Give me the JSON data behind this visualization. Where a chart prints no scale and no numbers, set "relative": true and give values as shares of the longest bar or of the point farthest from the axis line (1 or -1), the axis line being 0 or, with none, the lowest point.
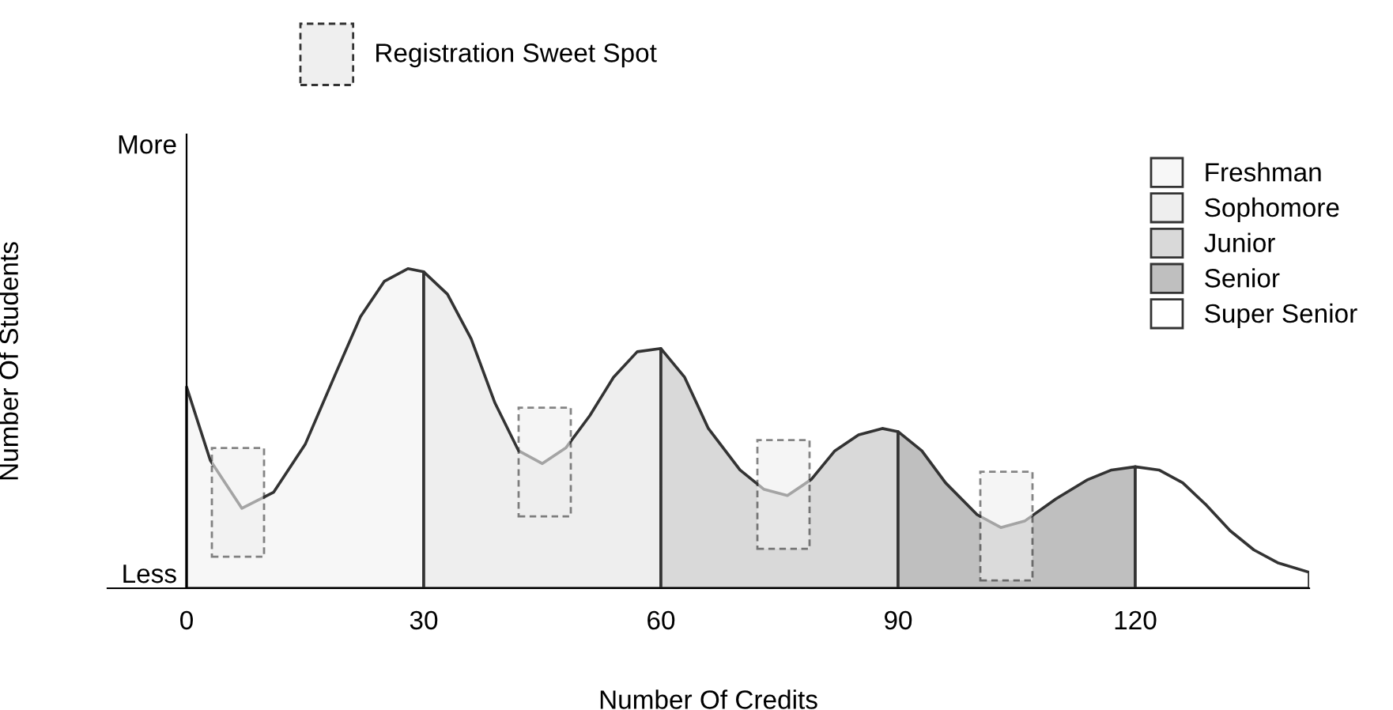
{
  "chart_data": {
    "type": "area",
    "relative": true,
    "xlabel": "Number Of Credits",
    "ylabel": "Number Of Students",
    "xlim": [
      -10,
      142
    ],
    "xticks": [
      0,
      30,
      60,
      90,
      120
    ],
    "legend": "top right",
    "annotations": [
      "More",
      "Less"
    ],
    "series": [
      {
        "name": "Freshman",
        "color": "#f7f7f7",
        "x": [
          0,
          3,
          7,
          11,
          15,
          19,
          22,
          25,
          28,
          30
        ],
        "values": [
          0.63,
          0.4,
          0.25,
          0.3,
          0.45,
          0.68,
          0.85,
          0.96,
          1.0,
          0.99
        ]
      },
      {
        "name": "Sophomore",
        "color": "#eeeeee",
        "x": [
          30,
          33,
          36,
          39,
          42,
          45,
          48,
          51,
          54,
          57,
          60
        ],
        "values": [
          0.99,
          0.92,
          0.78,
          0.58,
          0.43,
          0.39,
          0.44,
          0.54,
          0.66,
          0.74,
          0.75
        ]
      },
      {
        "name": "Junior",
        "color": "#d9d9d9",
        "x": [
          60,
          63,
          66,
          70,
          73,
          76,
          79,
          82,
          85,
          88,
          90
        ],
        "values": [
          0.75,
          0.66,
          0.5,
          0.37,
          0.31,
          0.29,
          0.34,
          0.43,
          0.48,
          0.5,
          0.49
        ]
      },
      {
        "name": "Senior",
        "color": "#bfbfbf",
        "x": [
          90,
          93,
          96,
          100,
          103,
          106,
          110,
          114,
          117,
          120
        ],
        "values": [
          0.49,
          0.43,
          0.33,
          0.23,
          0.19,
          0.21,
          0.28,
          0.34,
          0.37,
          0.38
        ]
      },
      {
        "name": "Super Senior",
        "color": "#ffffff",
        "x": [
          120,
          123,
          126,
          129,
          132,
          135,
          138,
          142
        ],
        "values": [
          0.38,
          0.37,
          0.33,
          0.26,
          0.18,
          0.12,
          0.08,
          0.05
        ]
      }
    ],
    "bands": [
      {
        "axis": "x",
        "from": 3.2,
        "to": 9.8,
        "label": "Registration Sweet Spot",
        "color": "#efefef"
      },
      {
        "axis": "x",
        "from": 42,
        "to": 48.6,
        "color": "#efefef"
      },
      {
        "axis": "x",
        "from": 72.2,
        "to": 78.8,
        "color": "#efefef"
      },
      {
        "axis": "x",
        "from": 100.4,
        "to": 107,
        "color": "#efefef"
      }
    ]
  }
}
